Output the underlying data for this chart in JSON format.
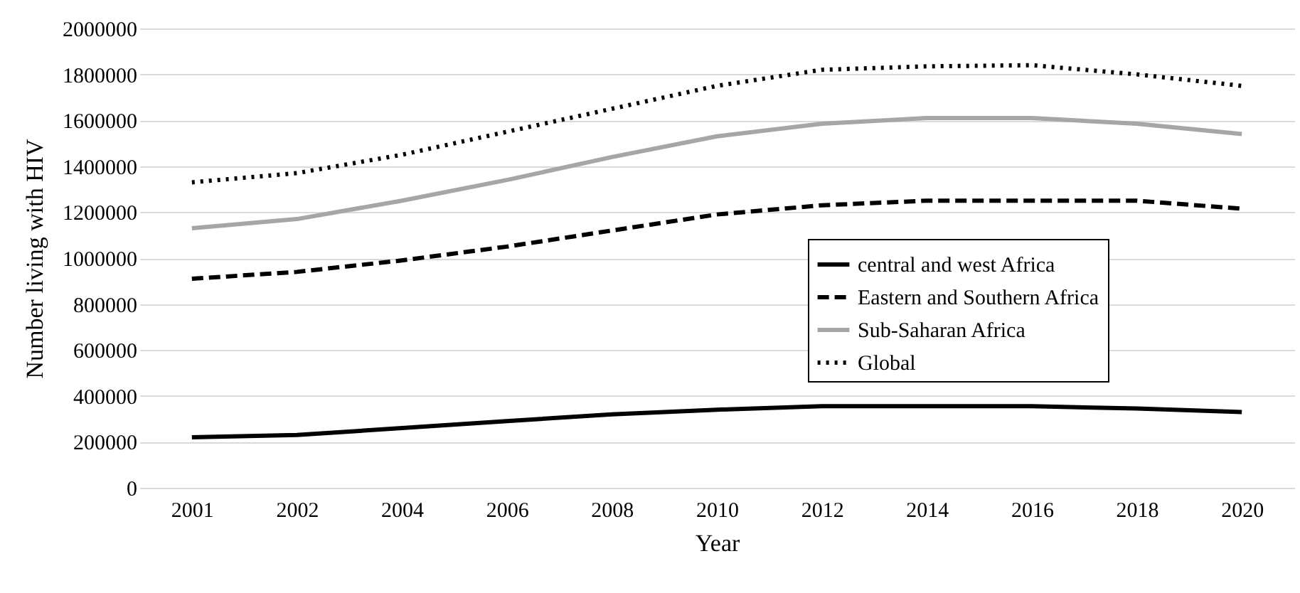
{
  "chart_data": {
    "type": "line",
    "xlabel": "Year",
    "ylabel": "Number living with HIV",
    "categories": [
      "2001",
      "2002",
      "2004",
      "2006",
      "2008",
      "2010",
      "2012",
      "2014",
      "2016",
      "2018",
      "2020"
    ],
    "series": [
      {
        "name": "central and west Africa",
        "color": "#000000",
        "line_style": "solid",
        "values": [
          220000,
          230000,
          260000,
          290000,
          320000,
          340000,
          355000,
          355000,
          355000,
          345000,
          330000
        ]
      },
      {
        "name": "Eastern and Southern Africa",
        "color": "#000000",
        "line_style": "dashed",
        "values": [
          910000,
          940000,
          990000,
          1050000,
          1120000,
          1190000,
          1230000,
          1250000,
          1250000,
          1250000,
          1215000
        ]
      },
      {
        "name": "Sub-Saharan Africa",
        "color": "#a6a6a6",
        "line_style": "solid",
        "values": [
          1130000,
          1170000,
          1250000,
          1340000,
          1440000,
          1530000,
          1585000,
          1610000,
          1610000,
          1585000,
          1540000
        ]
      },
      {
        "name": "Global",
        "color": "#000000",
        "line_style": "dotted",
        "values": [
          1330000,
          1370000,
          1450000,
          1550000,
          1650000,
          1750000,
          1820000,
          1835000,
          1840000,
          1800000,
          1750000
        ]
      }
    ],
    "ylim": [
      0,
      2000000
    ],
    "yticks": [
      0,
      200000,
      400000,
      600000,
      800000,
      1000000,
      1200000,
      1400000,
      1600000,
      1800000,
      2000000
    ],
    "grid": "y",
    "legend": "right"
  }
}
